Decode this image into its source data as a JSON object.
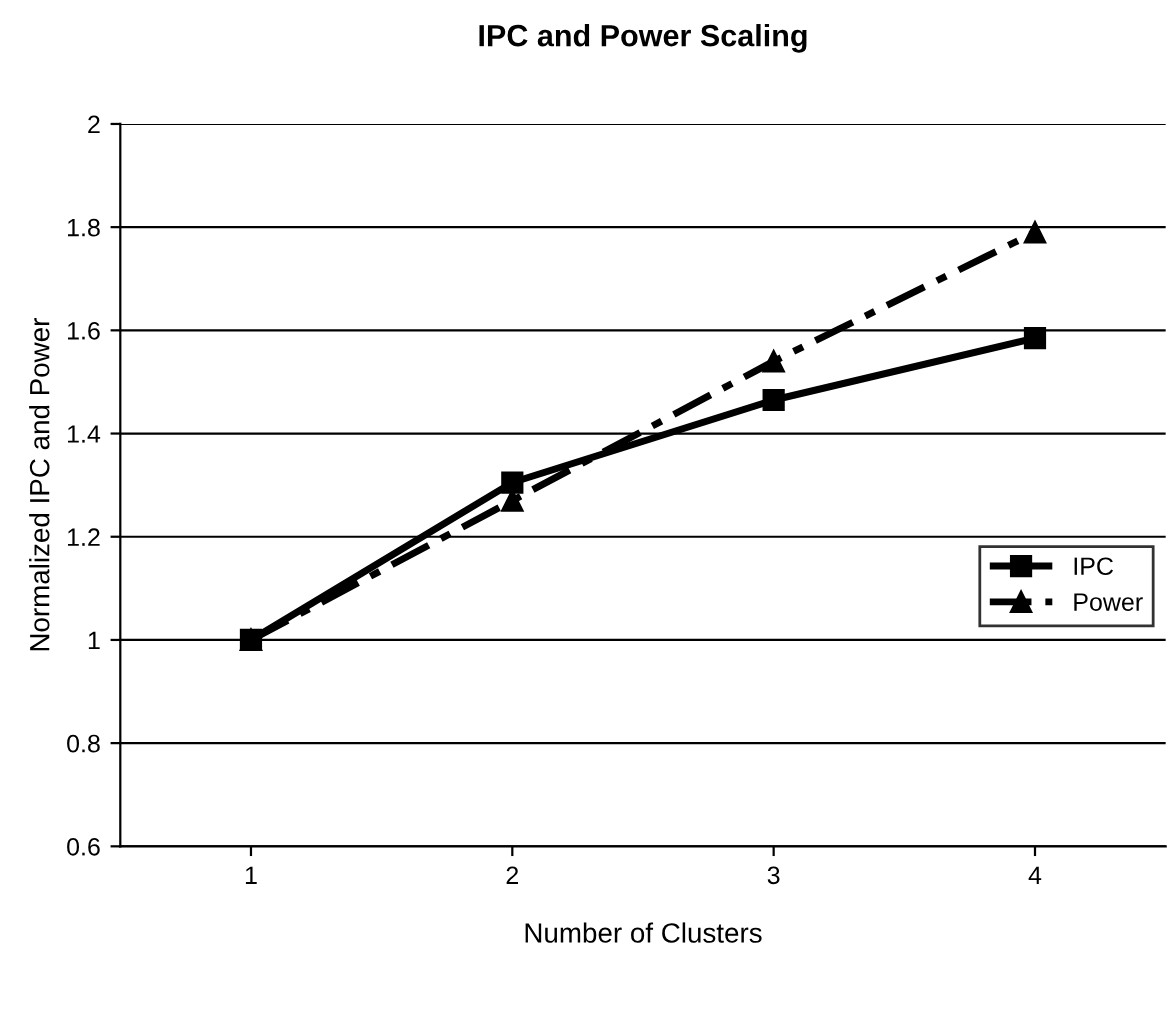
{
  "chart_data": {
    "type": "line",
    "title": "IPC and Power Scaling",
    "xlabel": "Number of Clusters",
    "ylabel": "Normalized IPC and Power",
    "categories": [
      "1",
      "2",
      "3",
      "4"
    ],
    "series": [
      {
        "name": "IPC",
        "color": "#000000",
        "values": [
          1.0,
          1.305,
          1.465,
          1.585
        ],
        "marker": "square",
        "line_style": "solid"
      },
      {
        "name": "Power",
        "color": "#000000",
        "values": [
          1.0,
          1.27,
          1.54,
          1.79
        ],
        "marker": "triangle",
        "line_style": "dashed"
      }
    ],
    "ylim": [
      0.6,
      2
    ],
    "yticks": [
      0.6,
      0.8,
      1,
      1.2,
      1.4,
      1.6,
      1.8,
      2
    ],
    "grid": "y",
    "legend": "right"
  }
}
